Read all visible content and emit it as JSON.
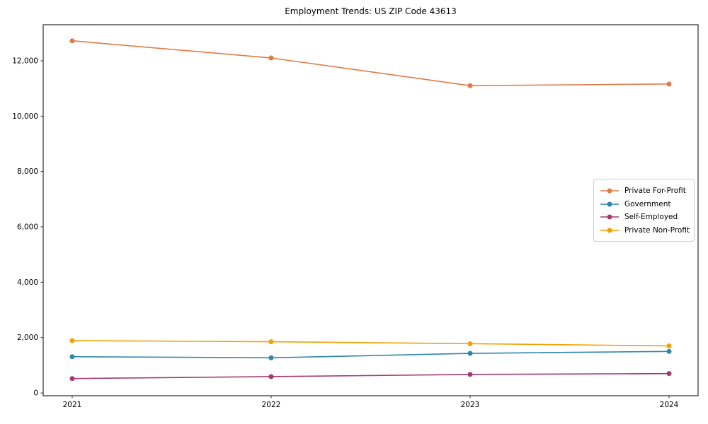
{
  "chart_data": {
    "type": "line",
    "title": "Employment Trends: US ZIP Code 43613",
    "x": [
      2021,
      2022,
      2023,
      2024
    ],
    "x_tick_labels": [
      "2021",
      "2022",
      "2023",
      "2024"
    ],
    "y_ticks": [
      0,
      2000,
      4000,
      6000,
      8000,
      10000,
      12000
    ],
    "y_tick_labels": [
      "0",
      "2,000",
      "4,000",
      "6,000",
      "8,000",
      "10,000",
      "12,000"
    ],
    "ylim": [
      -100,
      13300
    ],
    "xlabel": "",
    "ylabel": "",
    "grid": false,
    "legend_position": "center right",
    "series": [
      {
        "name": "Private For-Profit",
        "color": "#E07B45",
        "values": [
          12720,
          12100,
          11100,
          11160
        ]
      },
      {
        "name": "Government",
        "color": "#2E86AB",
        "values": [
          1310,
          1270,
          1430,
          1500
        ]
      },
      {
        "name": "Self-Employed",
        "color": "#A23B72",
        "values": [
          520,
          590,
          670,
          700
        ]
      },
      {
        "name": "Private Non-Profit",
        "color": "#F2A104",
        "values": [
          1890,
          1850,
          1780,
          1700
        ]
      }
    ]
  }
}
